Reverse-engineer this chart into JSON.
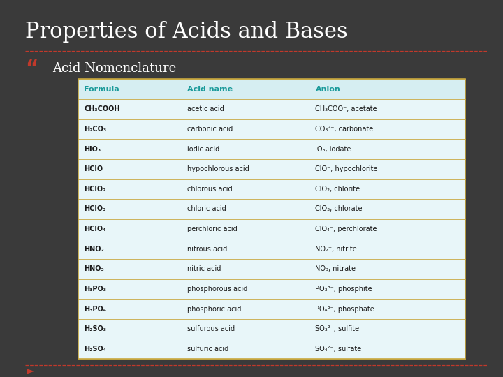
{
  "title": "Properties of Acids and Bases",
  "subtitle": "Acid Nomenclature",
  "bg_color": "#3a3a3a",
  "title_color": "#ffffff",
  "subtitle_color": "#ffffff",
  "bullet_color": "#c0392b",
  "header_bg": "#d6eef2",
  "row_bg": "#e8f6f9",
  "header_text_color": "#1a9a9a",
  "row_text_color": "#1a1a1a",
  "line_color": "#c8a840",
  "dashed_line_color": "#c0392b",
  "headers": [
    "Formula",
    "Acid name",
    "Anion"
  ],
  "rows": [
    [
      "CH₃COOH",
      "acetic acid",
      "CH₃COO⁻, acetate"
    ],
    [
      "H₂CO₃",
      "carbonic acid",
      "CO₃²⁻, carbonate"
    ],
    [
      "HIO₃",
      "iodic acid",
      "IO₃, iodate"
    ],
    [
      "HClO",
      "hypochlorous acid",
      "ClO⁻, hypochlorite"
    ],
    [
      "HClO₂",
      "chlorous acid",
      "ClO₂, chlorite"
    ],
    [
      "HClO₃",
      "chloric acid",
      "ClO₃, chlorate"
    ],
    [
      "HClO₄",
      "perchloric acid",
      "ClO₄⁻, perchlorate"
    ],
    [
      "HNO₂",
      "nitrous acid",
      "NO₂⁻, nitrite"
    ],
    [
      "HNO₃",
      "nitric acid",
      "NO₃, nitrate"
    ],
    [
      "H₃PO₃",
      "phosphorous acid",
      "PO₃³⁻, phosphite"
    ],
    [
      "H₃PO₄",
      "phosphoric acid",
      "PO₄³⁻, phosphate"
    ],
    [
      "H₂SO₃",
      "sulfurous acid",
      "SO₃²⁻, sulfite"
    ],
    [
      "H₂SO₄",
      "sulfuric acid",
      "SO₄²⁻, sulfate"
    ]
  ]
}
